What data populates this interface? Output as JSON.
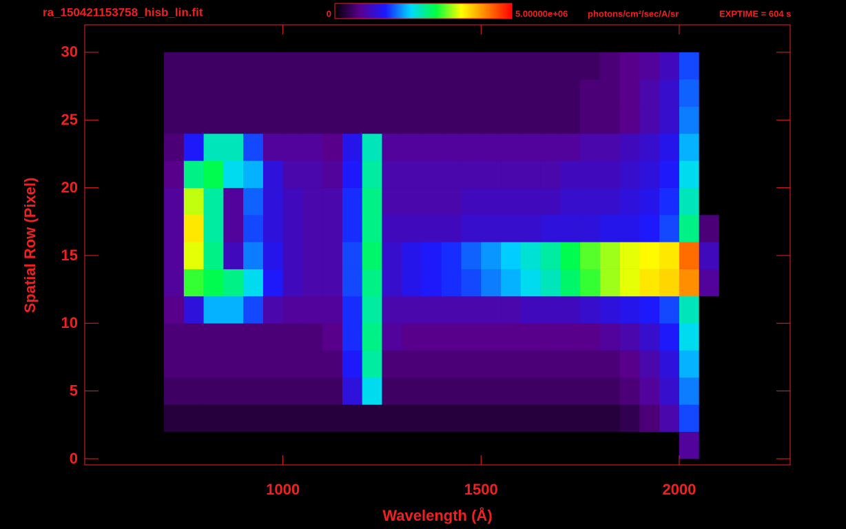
{
  "chart_data": {
    "type": "heatmap",
    "title": "ra_150421153758_hisb_lin.fit",
    "colorbar_unit": "photons/cm²/sec/A/sr",
    "exptime_label": "EXPTIME = 604 s",
    "xlabel": "Wavelength (Å)",
    "ylabel": "Spatial Row (Pixel)",
    "xlim": [
      500,
      2280
    ],
    "ylim": [
      -0.46,
      32.03
    ],
    "xticks": [
      1000,
      1500,
      2000
    ],
    "yticks": [
      0,
      5,
      10,
      15,
      20,
      25,
      30
    ],
    "clim": [
      0,
      5000000.0
    ],
    "cticks": [
      0,
      {
        "value": 5000000.0,
        "label": "5.00000e+06"
      }
    ],
    "colormap": [
      "#000000",
      "#5a008f",
      "#1a1aff",
      "#00d8ff",
      "#00ff40",
      "#ffff00",
      "#ff8000",
      "#ff0000"
    ],
    "axis_color": "#f02020",
    "xbins": [
      700,
      750,
      800,
      850,
      900,
      950,
      1000,
      1050,
      1100,
      1150,
      1200,
      1250,
      1300,
      1350,
      1400,
      1450,
      1500,
      1550,
      1600,
      1650,
      1700,
      1750,
      1800,
      1850,
      1900,
      1950,
      2000,
      2050,
      2100
    ],
    "ybins": [
      0,
      2,
      4,
      6,
      8,
      10,
      12,
      14,
      16,
      18,
      20,
      22,
      24,
      26,
      28,
      30
    ],
    "z": [
      [
        0,
        0,
        0,
        0,
        0,
        0,
        0,
        0,
        0,
        0,
        0,
        0,
        0,
        0,
        0,
        0,
        0,
        0,
        0,
        0,
        0,
        0,
        0,
        0,
        0,
        0,
        800000.0,
        0
      ],
      [
        300000.0,
        300000.0,
        300000.0,
        300000.0,
        300000.0,
        300000.0,
        300000.0,
        300000.0,
        300000.0,
        300000.0,
        300000.0,
        300000.0,
        300000.0,
        300000.0,
        300000.0,
        300000.0,
        300000.0,
        300000.0,
        300000.0,
        300000.0,
        300000.0,
        300000.0,
        300000.0,
        400000.0,
        600000.0,
        900000.0,
        1600000.0,
        0
      ],
      [
        500000.0,
        500000.0,
        500000.0,
        500000.0,
        500000.0,
        500000.0,
        500000.0,
        500000.0,
        500000.0,
        1200000.0,
        2200000.0,
        500000.0,
        500000.0,
        500000.0,
        500000.0,
        500000.0,
        500000.0,
        500000.0,
        500000.0,
        500000.0,
        500000.0,
        500000.0,
        500000.0,
        600000.0,
        800000.0,
        1100000.0,
        1800000.0,
        0
      ],
      [
        600000.0,
        600000.0,
        600000.0,
        600000.0,
        600000.0,
        600000.0,
        600000.0,
        600000.0,
        600000.0,
        1400000.0,
        2500000.0,
        600000.0,
        600000.0,
        600000.0,
        600000.0,
        600000.0,
        600000.0,
        600000.0,
        600000.0,
        600000.0,
        600000.0,
        600000.0,
        600000.0,
        700000.0,
        900000.0,
        1200000.0,
        2000000.0,
        0
      ],
      [
        600000.0,
        600000.0,
        600000.0,
        600000.0,
        600000.0,
        600000.0,
        600000.0,
        600000.0,
        700000.0,
        1500000.0,
        2600000.0,
        800000.0,
        700000.0,
        700000.0,
        700000.0,
        700000.0,
        700000.0,
        700000.0,
        700000.0,
        700000.0,
        700000.0,
        700000.0,
        800000.0,
        900000.0,
        1100000.0,
        1400000.0,
        2200000.0,
        0
      ],
      [
        700000.0,
        1200000.0,
        2000000.0,
        2000000.0,
        1600000.0,
        900000.0,
        800000.0,
        800000.0,
        800000.0,
        1500000.0,
        2500000.0,
        900000.0,
        900000.0,
        900000.0,
        900000.0,
        900000.0,
        900000.0,
        900000.0,
        1000000.0,
        1000000.0,
        1000000.0,
        1100000.0,
        1200000.0,
        1300000.0,
        1400000.0,
        1600000.0,
        2400000.0,
        0
      ],
      [
        800000.0,
        3000000.0,
        2800000.0,
        2600000.0,
        2200000.0,
        1400000.0,
        1000000.0,
        900000.0,
        900000.0,
        1600000.0,
        2600000.0,
        1100000.0,
        1300000.0,
        1400000.0,
        1500000.0,
        1600000.0,
        1800000.0,
        2000000.0,
        2200000.0,
        2400000.0,
        2700000.0,
        3000000.0,
        3300000.0,
        3500000.0,
        3700000.0,
        3800000.0,
        4200000.0,
        800000.0
      ],
      [
        800000.0,
        3500000.0,
        2600000.0,
        1000000.0,
        1800000.0,
        1300000.0,
        1000000.0,
        900000.0,
        900000.0,
        1600000.0,
        2700000.0,
        1100000.0,
        1300000.0,
        1400000.0,
        1500000.0,
        1700000.0,
        1900000.0,
        2100000.0,
        2300000.0,
        2500000.0,
        2800000.0,
        3100000.0,
        3300000.0,
        3500000.0,
        3600000.0,
        3700000.0,
        4400000.0,
        1000000.0
      ],
      [
        800000.0,
        3700000.0,
        2500000.0,
        800000.0,
        1600000.0,
        1200000.0,
        1000000.0,
        900000.0,
        900000.0,
        1500000.0,
        2600000.0,
        1000000.0,
        1000000.0,
        1000000.0,
        1000000.0,
        1100000.0,
        1100000.0,
        1100000.0,
        1100000.0,
        1200000.0,
        1200000.0,
        1200000.0,
        1300000.0,
        1300000.0,
        1400000.0,
        1600000.0,
        2600000.0,
        600000.0
      ],
      [
        800000.0,
        3400000.0,
        2500000.0,
        800000.0,
        1700000.0,
        1200000.0,
        1000000.0,
        900000.0,
        900000.0,
        1500000.0,
        2600000.0,
        900000.0,
        900000.0,
        900000.0,
        900000.0,
        1000000.0,
        1000000.0,
        1000000.0,
        1000000.0,
        1000000.0,
        1100000.0,
        1100000.0,
        1100000.0,
        1200000.0,
        1300000.0,
        1500000.0,
        2400000.0,
        0
      ],
      [
        700000.0,
        2600000.0,
        2800000.0,
        2200000.0,
        2000000.0,
        1200000.0,
        900000.0,
        900000.0,
        800000.0,
        1400000.0,
        2500000.0,
        900000.0,
        900000.0,
        900000.0,
        900000.0,
        900000.0,
        900000.0,
        900000.0,
        900000.0,
        900000.0,
        1000000.0,
        1000000.0,
        1000000.0,
        1100000.0,
        1200000.0,
        1400000.0,
        2200000.0,
        0
      ],
      [
        600000.0,
        1400000.0,
        2400000.0,
        2400000.0,
        1600000.0,
        800000.0,
        800000.0,
        800000.0,
        700000.0,
        1300000.0,
        2400000.0,
        800000.0,
        800000.0,
        800000.0,
        800000.0,
        800000.0,
        800000.0,
        800000.0,
        800000.0,
        800000.0,
        800000.0,
        900000.0,
        900000.0,
        1000000.0,
        1100000.0,
        1300000.0,
        2000000.0,
        0
      ],
      [
        500000.0,
        500000.0,
        500000.0,
        500000.0,
        500000.0,
        500000.0,
        500000.0,
        500000.0,
        500000.0,
        500000.0,
        500000.0,
        500000.0,
        500000.0,
        500000.0,
        500000.0,
        500000.0,
        500000.0,
        500000.0,
        500000.0,
        500000.0,
        500000.0,
        600000.0,
        600000.0,
        700000.0,
        900000.0,
        1100000.0,
        1800000.0,
        0
      ],
      [
        500000.0,
        500000.0,
        500000.0,
        500000.0,
        500000.0,
        500000.0,
        500000.0,
        500000.0,
        500000.0,
        500000.0,
        500000.0,
        500000.0,
        500000.0,
        500000.0,
        500000.0,
        500000.0,
        500000.0,
        500000.0,
        500000.0,
        500000.0,
        500000.0,
        600000.0,
        600000.0,
        700000.0,
        900000.0,
        1100000.0,
        1700000.0,
        0
      ],
      [
        500000.0,
        500000.0,
        500000.0,
        500000.0,
        500000.0,
        500000.0,
        500000.0,
        500000.0,
        500000.0,
        500000.0,
        500000.0,
        500000.0,
        500000.0,
        500000.0,
        500000.0,
        500000.0,
        500000.0,
        500000.0,
        500000.0,
        500000.0,
        500000.0,
        500000.0,
        600000.0,
        700000.0,
        800000.0,
        1000000.0,
        1600000.0,
        0
      ]
    ]
  }
}
